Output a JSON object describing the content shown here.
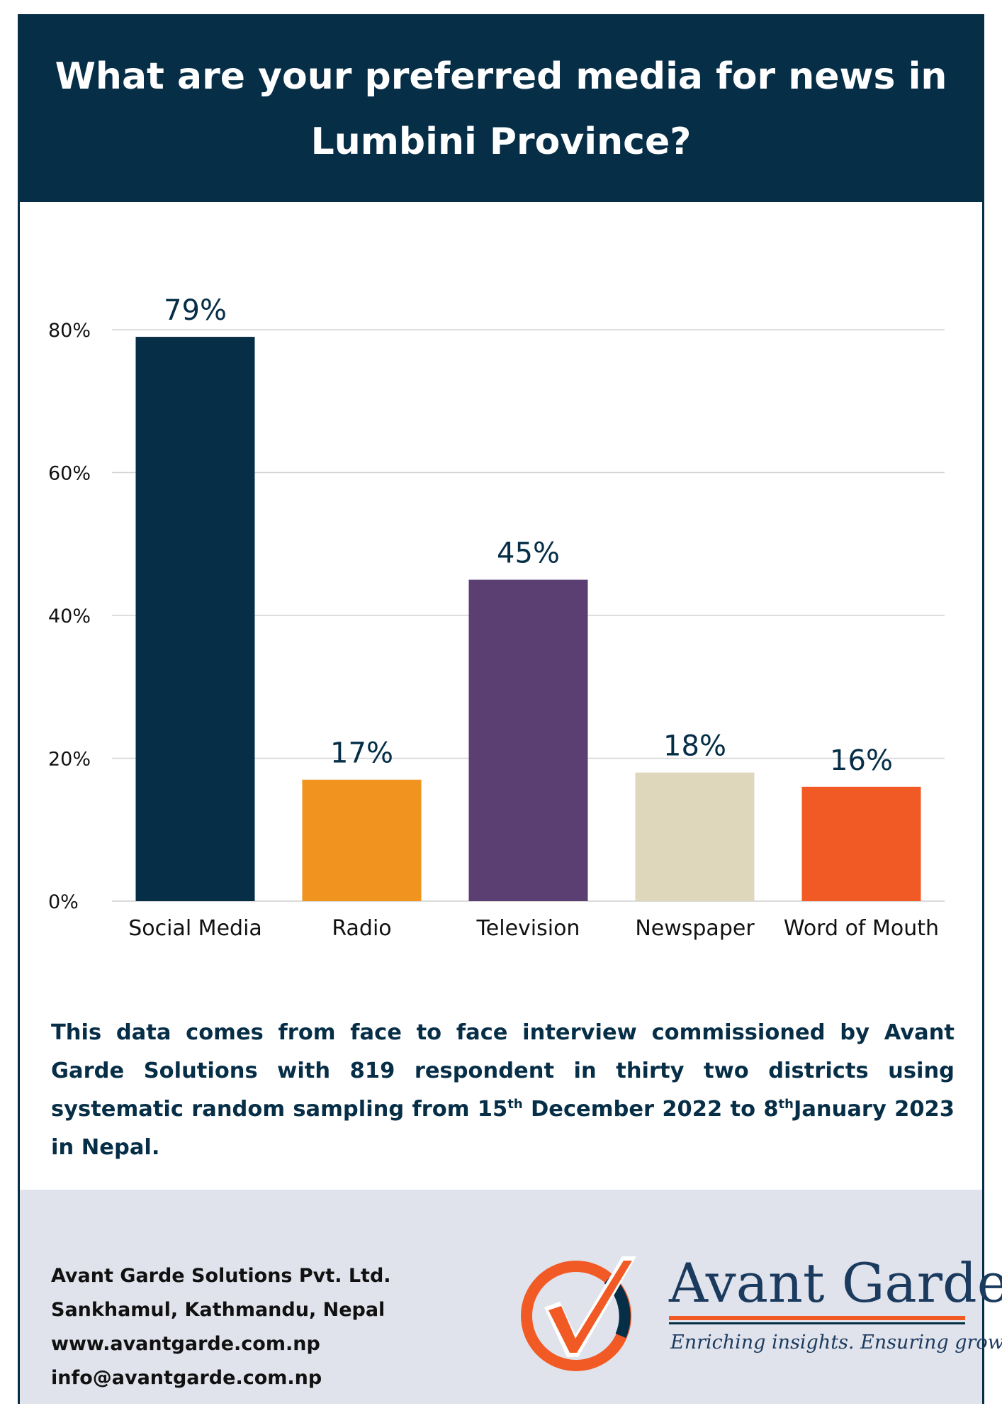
{
  "title": "What are your preferred media for news in Lumbini  Province?",
  "colors": {
    "navy": "#062e47",
    "orange": "#f0931f",
    "purple": "#5b3f73",
    "beige": "#dfd7bb",
    "red_orange": "#f15a24",
    "footer_bg": "#e1e3ec"
  },
  "chart_data": {
    "type": "bar",
    "categories": [
      "Social Media",
      "Radio",
      "Television",
      "Newspaper",
      "Word of Mouth"
    ],
    "values": [
      79,
      17,
      45,
      18,
      16
    ],
    "value_labels": [
      "79%",
      "17%",
      "45%",
      "18%",
      "16%"
    ],
    "bar_colors": [
      "#062e47",
      "#f0931f",
      "#5b3f73",
      "#dfd7bb",
      "#f15a24"
    ],
    "ylim": [
      0,
      80
    ],
    "yticks": [
      0,
      20,
      40,
      60,
      80
    ],
    "ytick_labels": [
      "0%",
      "20%",
      "40%",
      "60%",
      "80%"
    ],
    "grid": true
  },
  "note": {
    "part1": "This data comes from face to face interview commissioned by Avant Garde Solutions with 819 respondent in thirty two districts using systematic random sampling from 15",
    "sup1": "th",
    "part2": " December 2022 to 8",
    "sup2": "th",
    "part3": "January 2023 in Nepal."
  },
  "footer": {
    "company": "Avant Garde Solutions Pvt. Ltd.",
    "address": "Sankhamul, Kathmandu, Nepal",
    "website": "www.avantgarde.com.np",
    "email": "info@avantgarde.com.np"
  },
  "logo": {
    "wordmark": "Avant Garde",
    "tagline": "Enriching insights. Ensuring growth."
  }
}
